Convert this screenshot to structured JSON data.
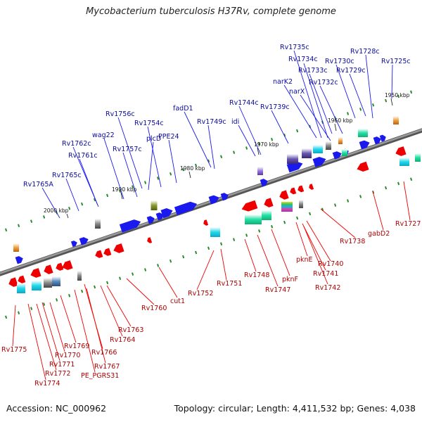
{
  "title": "Mycobacterium tuberculosis H37Rv, complete genome",
  "footer": {
    "accession": "Accession: NC_000962",
    "summary": "Topology: circular; Length: 4,411,532 bp; Genes: 4,038"
  },
  "colors": {
    "plus_strand": "#1a1aee",
    "minus_strand": "#ee0000",
    "backbone": "#7a7a7a",
    "tick": "#2a8a2a",
    "label_plus": "#0a0aa0",
    "label_minus": "#b00000"
  },
  "kbp_markers": [
    "1950 kbp",
    "1960 kbp",
    "1970 kbp",
    "1980 kbp",
    "1990 kbp",
    "2000 kbp"
  ],
  "top_labels": [
    "Rv1735c",
    "Rv1728c",
    "Rv1734c",
    "Rv1725c",
    "Rv1730c",
    "Rv1733c",
    "Rv1729c",
    "narK2",
    "Rv1732c",
    "narX",
    "Rv1744c",
    "Rv1739c",
    "fadD1",
    "Rv1756c",
    "Rv1749c",
    "idi",
    "Rv1754c",
    "wag22",
    "plcD",
    "PPE24",
    "Rv1762c",
    "Rv1757c",
    "Rv1761c",
    "Rv1765c",
    "Rv1765A"
  ],
  "bottom_labels": [
    "Rv1727",
    "gabD2",
    "Rv1738",
    "pknE",
    "Rv1740",
    "Rv1741",
    "Rv1742",
    "pknF",
    "Rv1748",
    "Rv1747",
    "Rv1751",
    "Rv1752",
    "cut1",
    "Rv1760",
    "Rv1763",
    "Rv1764",
    "Rv1769",
    "Rv1766",
    "Rv1767",
    "Rv1770",
    "Rv1771",
    "PE_PGRS31",
    "Rv1772",
    "Rv1775",
    "Rv1774"
  ]
}
